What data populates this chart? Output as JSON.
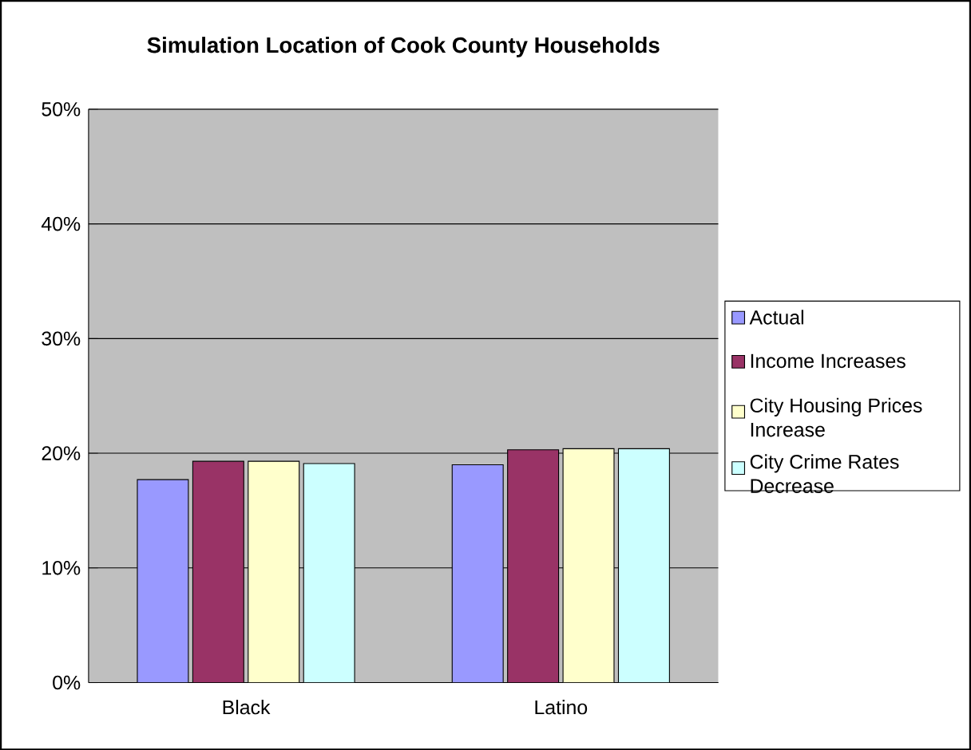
{
  "chart_data": {
    "type": "bar",
    "title": "Simulation Location of Cook County Households",
    "categories": [
      "Black",
      "Latino"
    ],
    "series": [
      {
        "name": "Actual",
        "color": "#9999ff",
        "values": [
          17.7,
          19.0
        ]
      },
      {
        "name": "Income Increases",
        "color": "#993366",
        "values": [
          19.3,
          20.3
        ]
      },
      {
        "name": "City Housing Prices Increase",
        "color": "#ffffcc",
        "values": [
          19.3,
          20.4
        ]
      },
      {
        "name": "City Crime Rates Decrease",
        "color": "#ccffff",
        "values": [
          19.1,
          20.4
        ]
      }
    ],
    "ylim": [
      0,
      50
    ],
    "yticks": [
      {
        "value": 0,
        "label": "0%"
      },
      {
        "value": 10,
        "label": "10%"
      },
      {
        "value": 20,
        "label": "20%"
      },
      {
        "value": 30,
        "label": "30%"
      },
      {
        "value": 40,
        "label": "40%"
      },
      {
        "value": 50,
        "label": "50%"
      }
    ],
    "grid": "y",
    "legend": "right"
  }
}
